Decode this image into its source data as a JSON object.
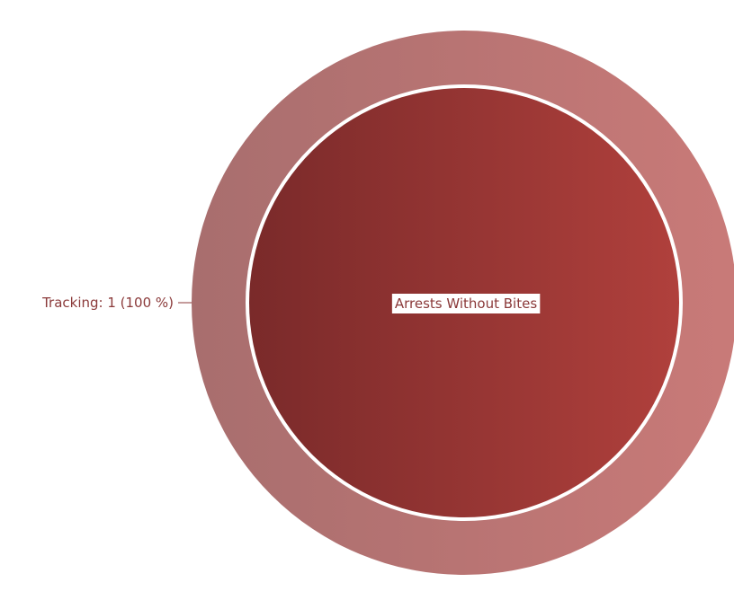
{
  "chart_data": {
    "type": "pie",
    "title": "",
    "rings": [
      {
        "level": "outer",
        "series": [
          {
            "name": "Tracking",
            "value": 1,
            "percent": 100,
            "label": "Tracking: 1 (100 %)"
          }
        ]
      },
      {
        "level": "inner",
        "series": [
          {
            "name": "Arrests Without Bites",
            "value": 1,
            "label": "Arrests Without Bites"
          }
        ]
      }
    ],
    "colors": {
      "outer_left": "#a86e6e",
      "outer_right": "#c97a78",
      "inner_left": "#7a2a2a",
      "inner_right": "#b0403c",
      "separator": "#ffffff",
      "label_text": "#8b3a3a"
    },
    "legend": "none"
  }
}
